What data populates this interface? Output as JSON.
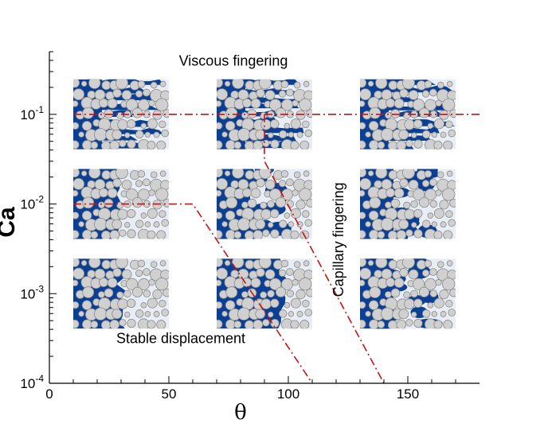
{
  "chart_data": {
    "type": "scatter",
    "xlabel": "θ",
    "ylabel": "Ca",
    "xlim": [
      0,
      180
    ],
    "ylim": [
      0.0001,
      0.5
    ],
    "yscale": "log",
    "x_ticks": [
      {
        "value": 0,
        "label": "0"
      },
      {
        "value": 50,
        "label": "50"
      },
      {
        "value": 100,
        "label": "100"
      },
      {
        "value": 150,
        "label": "150"
      }
    ],
    "y_ticks": [
      {
        "value": 0.0001,
        "base": "10",
        "exp": "-4"
      },
      {
        "value": 0.001,
        "base": "10",
        "exp": "-3"
      },
      {
        "value": 0.01,
        "base": "10",
        "exp": "-2"
      },
      {
        "value": 0.1,
        "base": "10",
        "exp": "-1"
      }
    ],
    "grid": false,
    "snapshots": [
      {
        "theta": 30,
        "ca": 0.1,
        "pattern": "viscous"
      },
      {
        "theta": 90,
        "ca": 0.1,
        "pattern": "viscous"
      },
      {
        "theta": 150,
        "ca": 0.1,
        "pattern": "viscous"
      },
      {
        "theta": 30,
        "ca": 0.01,
        "pattern": "stable"
      },
      {
        "theta": 90,
        "ca": 0.01,
        "pattern": "capillary"
      },
      {
        "theta": 150,
        "ca": 0.01,
        "pattern": "capillary"
      },
      {
        "theta": 30,
        "ca": 0.001,
        "pattern": "stable"
      },
      {
        "theta": 90,
        "ca": 0.001,
        "pattern": "stable"
      },
      {
        "theta": 150,
        "ca": 0.001,
        "pattern": "capillary"
      }
    ],
    "boundaries": [
      {
        "points": [
          [
            10,
            0.1
          ],
          [
            180,
            0.1
          ]
        ]
      },
      {
        "points": [
          [
            10,
            0.01
          ],
          [
            60,
            0.01
          ],
          [
            110,
            0.0001
          ]
        ]
      },
      {
        "points": [
          [
            90,
            0.1
          ],
          [
            90,
            0.03
          ],
          [
            140,
            0.0001
          ]
        ]
      }
    ],
    "annotations": [
      {
        "text": "Viscous fingering",
        "theta": 77,
        "ca": 0.35,
        "rotation": 0
      },
      {
        "text": "Capillary fingering",
        "theta": 123,
        "ca": 0.004,
        "rotation": -90
      },
      {
        "text": "Stable displacement",
        "theta": 55,
        "ca": 0.00028,
        "rotation": 0
      }
    ],
    "colors": {
      "boundary": "#cc1111",
      "fluid": "#0a3f96",
      "grain": "#d0d0d0",
      "grain_edge": "#8a8a8a",
      "background": "#e9eef6"
    }
  }
}
